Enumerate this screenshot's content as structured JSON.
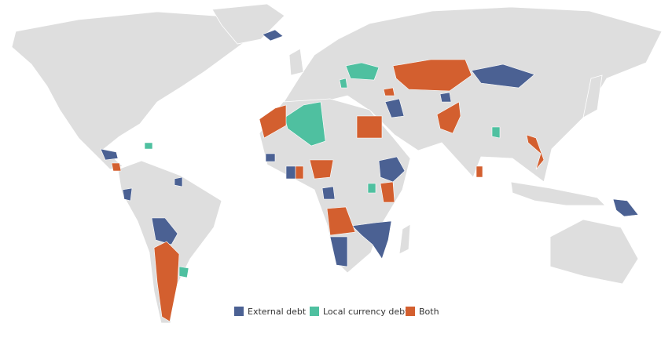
{
  "legend": [
    {
      "name": "External debt",
      "color": "#4b6193"
    },
    {
      "name": "Local currency debt",
      "color": "#4fc0a0"
    },
    {
      "name": "Both",
      "color": "#d35f2f"
    }
  ]
}
